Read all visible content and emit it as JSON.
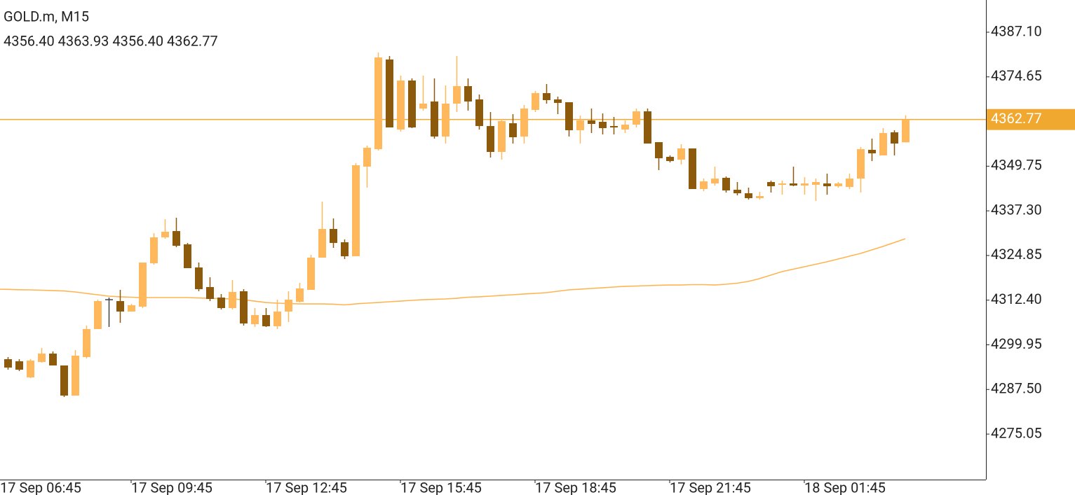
{
  "chart_data": {
    "type": "candlestick",
    "title": "GOLD.m, M15",
    "subtitle": "4356.40 4363.93 4356.40 4362.77",
    "categories": [
      "17 Sep 06:45",
      null,
      null,
      null,
      null,
      null,
      null,
      null,
      null,
      null,
      null,
      null,
      "17 Sep 09:45",
      null,
      null,
      null,
      null,
      null,
      null,
      null,
      null,
      null,
      null,
      null,
      "17 Sep 12:45",
      null,
      null,
      null,
      null,
      null,
      null,
      null,
      null,
      null,
      null,
      null,
      "17 Sep 15:45",
      null,
      null,
      null,
      null,
      null,
      null,
      null,
      null,
      null,
      null,
      null,
      "17 Sep 18:45",
      null,
      null,
      null,
      null,
      null,
      null,
      null,
      null,
      null,
      null,
      null,
      "17 Sep 21:45",
      null,
      null,
      null,
      null,
      null,
      null,
      null,
      null,
      null,
      null,
      null,
      "18 Sep 01:45",
      null,
      null,
      null,
      null,
      null,
      null,
      null,
      null,
      null
    ],
    "open": [
      null,
      4295.94,
      4295.36,
      4290.87,
      4295.16,
      4297.5,
      4294.19,
      4285.79,
      4296.53,
      4304.34,
      4312.53,
      4312.14,
      4309.22,
      4310.58,
      4322.68,
      4329.91,
      4331.66,
      4327.96,
      4321.51,
      4316.05,
      4313.12,
      4310.19,
      4314.88,
      4305.7,
      4308.24,
      4305.12,
      4309.22,
      4311.95,
      4315.27,
      4324.25,
      4332.25,
      4328.54,
      4324.64,
      4349.62,
      4354.5,
      4379.49,
      4359.97,
      4373.63,
      4365.82,
      4367.78,
      4358.02,
      4367.19,
      4372.07,
      4368.36,
      4360.94,
      4353.72,
      4361.72,
      4358.02,
      4365.43,
      4370.12,
      4368.36,
      4367.58,
      4359.77,
      4362.51,
      4362.12,
      4360.94,
      4359.97,
      4361.33,
      4365.04,
      4356.45,
      4352.36,
      4351.57,
      4354.7,
      4343.38,
      4344.94,
      4346.5,
      4343.18,
      4342.2,
      4340.84,
      4345.33,
      4344.55,
      4344.94,
      4344.35,
      4344.55,
      4344.94,
      4344.16,
      4343.96,
      4346.3,
      4354.31,
      4352.75,
      4359.19,
      4356.4
    ],
    "high": [
      null,
      4296.53,
      4295.94,
      4295.94,
      4299.07,
      4298.09,
      4294.19,
      4298.48,
      4305.31,
      4312.53,
      4313.12,
      4315.27,
      4311.36,
      4322.88,
      4331.08,
      4334.98,
      4335.37,
      4328.35,
      4322.88,
      4318.78,
      4314.1,
      4318.0,
      4315.46,
      4310.19,
      4310.19,
      4312.53,
      4314.88,
      4317.22,
      4325.03,
      4339.86,
      4335.18,
      4329.32,
      4350.6,
      4355.48,
      4381.44,
      4380.46,
      4375.0,
      4374.22,
      4375.0,
      4374.22,
      4372.27,
      4380.46,
      4374.22,
      4369.73,
      4364.85,
      4362.9,
      4364.26,
      4366.8,
      4370.7,
      4372.66,
      4369.14,
      4367.58,
      4363.87,
      4365.82,
      4364.46,
      4363.48,
      4362.51,
      4365.82,
      4365.82,
      4356.45,
      4352.75,
      4355.87,
      4354.7,
      4346.3,
      4349.62,
      4346.89,
      4345.33,
      4343.77,
      4342.6,
      4345.72,
      4345.72,
      4349.62,
      4346.69,
      4346.3,
      4347.67,
      4345.33,
      4347.67,
      4355.09,
      4357.43,
      4360.36,
      4359.77,
      4363.93
    ],
    "low": [
      null,
      4293.01,
      4292.62,
      4290.67,
      4294.97,
      4294.19,
      4285.4,
      4285.79,
      4296.14,
      4304.34,
      4304.92,
      4306.09,
      4309.22,
      4310.19,
      4322.29,
      4329.52,
      4327.17,
      4321.32,
      4314.88,
      4312.14,
      4309.8,
      4309.8,
      4305.31,
      4304.92,
      4304.92,
      4304.34,
      4306.29,
      4311.75,
      4315.27,
      4324.25,
      4326.98,
      4323.86,
      4324.64,
      4343.77,
      4354.11,
      4360.55,
      4359.38,
      4360.36,
      4365.24,
      4357.43,
      4356.06,
      4364.85,
      4365.24,
      4359.97,
      4352.16,
      4351.57,
      4356.06,
      4356.06,
      4364.85,
      4367.19,
      4364.26,
      4358.02,
      4356.06,
      4358.99,
      4358.6,
      4358.6,
      4358.99,
      4360.55,
      4356.06,
      4348.65,
      4350.79,
      4350.21,
      4343.38,
      4342.79,
      4344.35,
      4342.4,
      4341.62,
      4340.45,
      4340.45,
      4342.4,
      4341.81,
      4344.16,
      4341.81,
      4340.06,
      4341.81,
      4343.77,
      4343.38,
      4342.4,
      4351.18,
      4352.75,
      4352.75,
      4356.4
    ],
    "close": [
      null,
      4293.6,
      4293.01,
      4295.55,
      4297.5,
      4294.19,
      4285.79,
      4296.92,
      4304.34,
      4312.14,
      4312.53,
      4309.22,
      4310.97,
      4322.88,
      4329.91,
      4331.47,
      4327.56,
      4321.32,
      4315.46,
      4312.73,
      4310.19,
      4314.68,
      4305.9,
      4308.24,
      4305.12,
      4309.22,
      4312.53,
      4315.66,
      4324.25,
      4332.25,
      4328.35,
      4324.64,
      4350.01,
      4354.89,
      4380.07,
      4360.55,
      4373.63,
      4360.55,
      4367.19,
      4358.02,
      4367.19,
      4372.07,
      4367.78,
      4360.94,
      4353.72,
      4362.31,
      4357.82,
      4365.82,
      4370.12,
      4368.17,
      4367.39,
      4359.77,
      4362.51,
      4361.53,
      4360.36,
      4360.55,
      4361.33,
      4365.04,
      4356.06,
      4351.96,
      4351.18,
      4354.7,
      4343.38,
      4345.52,
      4346.3,
      4342.99,
      4342.2,
      4340.84,
      4341.42,
      4344.16,
      4344.94,
      4344.35,
      4344.94,
      4345.33,
      4344.16,
      4344.94,
      4346.3,
      4354.5,
      4353.33,
      4358.99,
      4356.06,
      4362.77
    ],
    "ma": {
      "color": "#ffb452",
      "values": [
        4315.46,
        4315.4,
        4315.31,
        4315.27,
        4315.17,
        4315.07,
        4314.97,
        4314.68,
        4314.29,
        4313.9,
        4313.51,
        4313.32,
        4313.22,
        4313.12,
        4313.12,
        4313.12,
        4313.12,
        4313.12,
        4313.02,
        4312.92,
        4312.83,
        4312.73,
        4312.53,
        4312.14,
        4311.75,
        4311.56,
        4311.46,
        4311.36,
        4311.36,
        4311.36,
        4311.27,
        4311.07,
        4311.36,
        4311.56,
        4311.75,
        4311.95,
        4312.14,
        4312.34,
        4312.53,
        4312.63,
        4312.73,
        4312.92,
        4313.22,
        4313.32,
        4313.51,
        4313.71,
        4313.9,
        4314.1,
        4314.29,
        4314.49,
        4314.88,
        4315.27,
        4315.46,
        4315.66,
        4315.85,
        4316.05,
        4316.24,
        4316.34,
        4316.44,
        4316.54,
        4316.63,
        4316.63,
        4316.73,
        4316.73,
        4316.63,
        4316.83,
        4317.12,
        4317.61,
        4318.39,
        4319.37,
        4320.34,
        4321.03,
        4321.71,
        4322.39,
        4323.08,
        4323.86,
        4324.64,
        4325.42,
        4326.39,
        4327.37,
        4328.44,
        4329.52
      ]
    },
    "up_color": "#ffb95c",
    "down_color": "#8c5a0a",
    "doji_color": "#444444",
    "last_price": 4362.77,
    "last_price_color": "#f0a830",
    "ylim": [
      4262.37,
      4396.08
    ],
    "yticks": [
      {
        "value": 4387.1,
        "label": "4387.10"
      },
      4374.65,
      4349.75,
      {
        "value": 4337.3,
        "label": "4337.30"
      },
      4324.85,
      {
        "value": 4312.4,
        "label": "4312.40"
      },
      4299.95,
      {
        "value": 4287.5,
        "label": "4287.50"
      },
      4275.05
    ],
    "grid": false
  }
}
